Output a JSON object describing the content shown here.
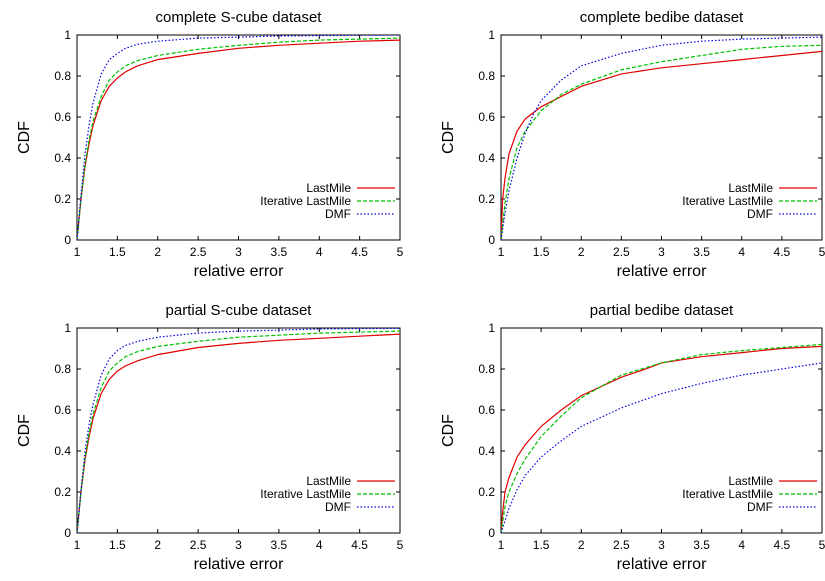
{
  "chart_data": [
    {
      "type": "line",
      "title": "complete S-cube dataset",
      "xlabel": "relative error",
      "ylabel": "CDF",
      "xlim": [
        1,
        5
      ],
      "ylim": [
        0,
        1
      ],
      "xticks": [
        "1",
        "1.5",
        "2",
        "2.5",
        "3",
        "3.5",
        "4",
        "4.5",
        "5"
      ],
      "yticks": [
        "0",
        "0.2",
        "0.4",
        "0.6",
        "0.8",
        "1"
      ],
      "grid": false,
      "legend_position": "bottom-right",
      "series": [
        {
          "name": "LastMile",
          "color": "#e00000",
          "dash": "solid",
          "x": [
            1.0,
            1.05,
            1.1,
            1.15,
            1.2,
            1.3,
            1.4,
            1.5,
            1.6,
            1.75,
            2.0,
            2.5,
            3.0,
            3.5,
            4.0,
            4.5,
            5.0
          ],
          "y": [
            0.0,
            0.2,
            0.36,
            0.47,
            0.56,
            0.68,
            0.75,
            0.79,
            0.82,
            0.85,
            0.88,
            0.91,
            0.935,
            0.95,
            0.96,
            0.97,
            0.975
          ]
        },
        {
          "name": "Iterative LastMile",
          "color": "#00c000",
          "dash": "dashed",
          "x": [
            1.0,
            1.05,
            1.1,
            1.15,
            1.2,
            1.3,
            1.4,
            1.5,
            1.6,
            1.75,
            2.0,
            2.5,
            3.0,
            3.5,
            4.0,
            4.5,
            5.0
          ],
          "y": [
            0.0,
            0.2,
            0.37,
            0.49,
            0.58,
            0.7,
            0.78,
            0.82,
            0.85,
            0.875,
            0.9,
            0.93,
            0.95,
            0.965,
            0.975,
            0.98,
            0.985
          ]
        },
        {
          "name": "DMF",
          "color": "#0000e0",
          "dash": "dotted",
          "x": [
            1.0,
            1.05,
            1.1,
            1.15,
            1.2,
            1.3,
            1.4,
            1.5,
            1.6,
            1.75,
            2.0,
            2.5,
            3.0,
            3.5,
            4.0,
            4.5,
            5.0
          ],
          "y": [
            0.0,
            0.22,
            0.42,
            0.56,
            0.67,
            0.81,
            0.88,
            0.91,
            0.935,
            0.955,
            0.97,
            0.985,
            0.99,
            0.995,
            0.997,
            0.999,
            1.0
          ]
        }
      ]
    },
    {
      "type": "line",
      "title": "complete bedibe dataset",
      "xlabel": "relative error",
      "ylabel": "CDF",
      "xlim": [
        1,
        5
      ],
      "ylim": [
        0,
        1
      ],
      "xticks": [
        "1",
        "1.5",
        "2",
        "2.5",
        "3",
        "3.5",
        "4",
        "4.5",
        "5"
      ],
      "yticks": [
        "0",
        "0.2",
        "0.4",
        "0.6",
        "0.8",
        "1"
      ],
      "grid": false,
      "legend_position": "bottom-right",
      "series": [
        {
          "name": "LastMile",
          "color": "#e00000",
          "dash": "solid",
          "x": [
            1.0,
            1.02,
            1.05,
            1.1,
            1.2,
            1.3,
            1.4,
            1.5,
            1.75,
            2.0,
            2.5,
            3.0,
            3.5,
            4.0,
            4.5,
            5.0
          ],
          "y": [
            0.0,
            0.2,
            0.3,
            0.42,
            0.53,
            0.59,
            0.62,
            0.65,
            0.7,
            0.75,
            0.81,
            0.84,
            0.86,
            0.88,
            0.9,
            0.92
          ]
        },
        {
          "name": "Iterative LastMile",
          "color": "#00c000",
          "dash": "dashed",
          "x": [
            1.0,
            1.05,
            1.1,
            1.2,
            1.3,
            1.4,
            1.5,
            1.75,
            2.0,
            2.5,
            3.0,
            3.5,
            4.0,
            4.5,
            5.0
          ],
          "y": [
            0.0,
            0.18,
            0.3,
            0.45,
            0.53,
            0.58,
            0.63,
            0.71,
            0.76,
            0.83,
            0.87,
            0.9,
            0.93,
            0.945,
            0.95
          ]
        },
        {
          "name": "DMF",
          "color": "#0000e0",
          "dash": "dotted",
          "x": [
            1.0,
            1.05,
            1.1,
            1.2,
            1.3,
            1.4,
            1.5,
            1.75,
            2.0,
            2.5,
            3.0,
            3.5,
            4.0,
            4.5,
            5.0
          ],
          "y": [
            0.0,
            0.13,
            0.24,
            0.4,
            0.52,
            0.61,
            0.68,
            0.78,
            0.85,
            0.91,
            0.95,
            0.97,
            0.98,
            0.985,
            0.99
          ]
        }
      ]
    },
    {
      "type": "line",
      "title": "partial S-cube dataset",
      "xlabel": "relative error",
      "ylabel": "CDF",
      "xlim": [
        1,
        5
      ],
      "ylim": [
        0,
        1
      ],
      "xticks": [
        "1",
        "1.5",
        "2",
        "2.5",
        "3",
        "3.5",
        "4",
        "4.5",
        "5"
      ],
      "yticks": [
        "0",
        "0.2",
        "0.4",
        "0.6",
        "0.8",
        "1"
      ],
      "grid": false,
      "legend_position": "bottom-right",
      "series": [
        {
          "name": "LastMile",
          "color": "#e00000",
          "dash": "solid",
          "x": [
            1.0,
            1.05,
            1.1,
            1.15,
            1.2,
            1.3,
            1.4,
            1.5,
            1.6,
            1.75,
            2.0,
            2.5,
            3.0,
            3.5,
            4.0,
            4.5,
            5.0
          ],
          "y": [
            0.0,
            0.2,
            0.36,
            0.47,
            0.56,
            0.68,
            0.75,
            0.79,
            0.815,
            0.84,
            0.87,
            0.905,
            0.925,
            0.94,
            0.95,
            0.96,
            0.97
          ]
        },
        {
          "name": "Iterative LastMile",
          "color": "#00c000",
          "dash": "dashed",
          "x": [
            1.0,
            1.05,
            1.1,
            1.15,
            1.2,
            1.3,
            1.4,
            1.5,
            1.6,
            1.75,
            2.0,
            2.5,
            3.0,
            3.5,
            4.0,
            4.5,
            5.0
          ],
          "y": [
            0.0,
            0.2,
            0.37,
            0.49,
            0.58,
            0.71,
            0.79,
            0.83,
            0.86,
            0.885,
            0.91,
            0.935,
            0.955,
            0.965,
            0.975,
            0.98,
            0.985
          ]
        },
        {
          "name": "DMF",
          "color": "#0000e0",
          "dash": "dotted",
          "x": [
            1.0,
            1.05,
            1.1,
            1.15,
            1.2,
            1.3,
            1.4,
            1.5,
            1.6,
            1.75,
            2.0,
            2.5,
            3.0,
            3.5,
            4.0,
            4.5,
            5.0
          ],
          "y": [
            0.0,
            0.21,
            0.4,
            0.53,
            0.63,
            0.77,
            0.85,
            0.89,
            0.915,
            0.935,
            0.955,
            0.975,
            0.985,
            0.99,
            0.995,
            0.997,
            0.998
          ]
        }
      ]
    },
    {
      "type": "line",
      "title": "partial bedibe dataset",
      "xlabel": "relative error",
      "ylabel": "CDF",
      "xlim": [
        1,
        5
      ],
      "ylim": [
        0,
        1
      ],
      "xticks": [
        "1",
        "1.5",
        "2",
        "2.5",
        "3",
        "3.5",
        "4",
        "4.5",
        "5"
      ],
      "yticks": [
        "0",
        "0.2",
        "0.4",
        "0.6",
        "0.8",
        "1"
      ],
      "grid": false,
      "legend_position": "bottom-right",
      "series": [
        {
          "name": "LastMile",
          "color": "#e00000",
          "dash": "solid",
          "x": [
            1.0,
            1.02,
            1.05,
            1.1,
            1.2,
            1.3,
            1.5,
            1.75,
            2.0,
            2.5,
            2.8,
            3.0,
            3.5,
            4.0,
            4.5,
            5.0
          ],
          "y": [
            0.0,
            0.1,
            0.2,
            0.27,
            0.37,
            0.43,
            0.52,
            0.6,
            0.67,
            0.76,
            0.8,
            0.83,
            0.86,
            0.88,
            0.9,
            0.91
          ]
        },
        {
          "name": "Iterative LastMile",
          "color": "#00c000",
          "dash": "dashed",
          "x": [
            1.0,
            1.05,
            1.1,
            1.2,
            1.3,
            1.5,
            1.75,
            2.0,
            2.5,
            3.0,
            3.5,
            4.0,
            4.5,
            5.0
          ],
          "y": [
            0.0,
            0.13,
            0.2,
            0.29,
            0.36,
            0.47,
            0.57,
            0.66,
            0.77,
            0.83,
            0.87,
            0.89,
            0.905,
            0.92
          ]
        },
        {
          "name": "DMF",
          "color": "#0000e0",
          "dash": "dotted",
          "x": [
            1.0,
            1.05,
            1.1,
            1.2,
            1.3,
            1.5,
            1.75,
            2.0,
            2.5,
            3.0,
            3.5,
            4.0,
            4.5,
            5.0
          ],
          "y": [
            0.0,
            0.06,
            0.12,
            0.21,
            0.28,
            0.37,
            0.45,
            0.52,
            0.61,
            0.68,
            0.73,
            0.77,
            0.8,
            0.83
          ]
        }
      ]
    }
  ]
}
